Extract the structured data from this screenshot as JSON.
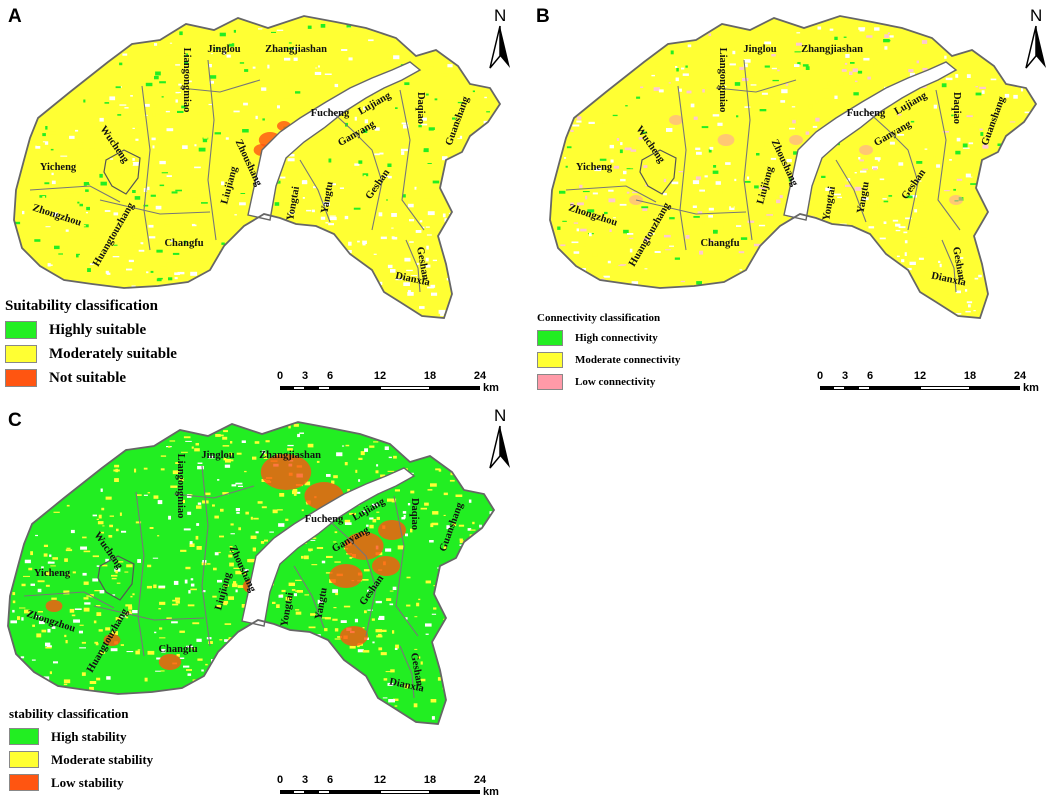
{
  "panels": {
    "a": {
      "letter": "A",
      "legend_title": "Suitability classification",
      "classes": [
        {
          "label": "Highly suitable",
          "color": "#22ee22"
        },
        {
          "label": "Moderately suitable",
          "color": "#ffff33"
        },
        {
          "label": "Not suitable",
          "color": "#ff5511"
        }
      ],
      "places": [
        "Jinglou",
        "Liangongmiao",
        "Zhangjiashan",
        "Fucheng",
        "Lujiang",
        "Daqiao",
        "Guanshang",
        "Yicheng",
        "Wucheng",
        "Zhoushang",
        "Ganyang",
        "Liujiang",
        "Yongtai",
        "Yangtu",
        "Geshan",
        "Zhongzhou",
        "Huangtouzhang",
        "Changfu",
        "Geshan",
        "Dianxia"
      ]
    },
    "b": {
      "letter": "B",
      "legend_title": "Connectivity classification",
      "classes": [
        {
          "label": "High connectivity",
          "color": "#22ee22"
        },
        {
          "label": "Moderate connectivity",
          "color": "#ffff33"
        },
        {
          "label": "Low connectivity",
          "color": "#ff9aa8"
        }
      ],
      "places": [
        "Jinglou",
        "Liangongmiao",
        "Zhangjiashan",
        "Fucheng",
        "Lujiang",
        "Daqiao",
        "Guanshang",
        "Yicheng",
        "Wucheng",
        "Zhoushang",
        "Ganyang",
        "Liujiang",
        "Yongtai",
        "Yangtu",
        "Geshan",
        "Zhongzhou",
        "Huangtouzhang",
        "Changfu",
        "Geshan",
        "Dianxia"
      ]
    },
    "c": {
      "letter": "C",
      "legend_title": "stability classification",
      "classes": [
        {
          "label": "High stability",
          "color": "#22ee22"
        },
        {
          "label": "Moderate stability",
          "color": "#ffff33"
        },
        {
          "label": "Low stability",
          "color": "#ff5511"
        }
      ],
      "places": [
        "Jinglou",
        "Liangongmiao",
        "Zhangjiashan",
        "Fucheng",
        "Lujiang",
        "Daqiao",
        "Guanshang",
        "Yicheng",
        "Wucheng",
        "Zhoushang",
        "Ganyang",
        "Liujiang",
        "Yongtai",
        "Yangtu",
        "Geshan",
        "Zhongzhou",
        "Huangtouzhang",
        "Changfu",
        "Geshan",
        "Dianxia"
      ]
    }
  },
  "scale_bar": {
    "ticks": [
      "0",
      "3",
      "6",
      "12",
      "18",
      "24"
    ],
    "unit": "km"
  },
  "north_arrow": {
    "letter": "N"
  }
}
